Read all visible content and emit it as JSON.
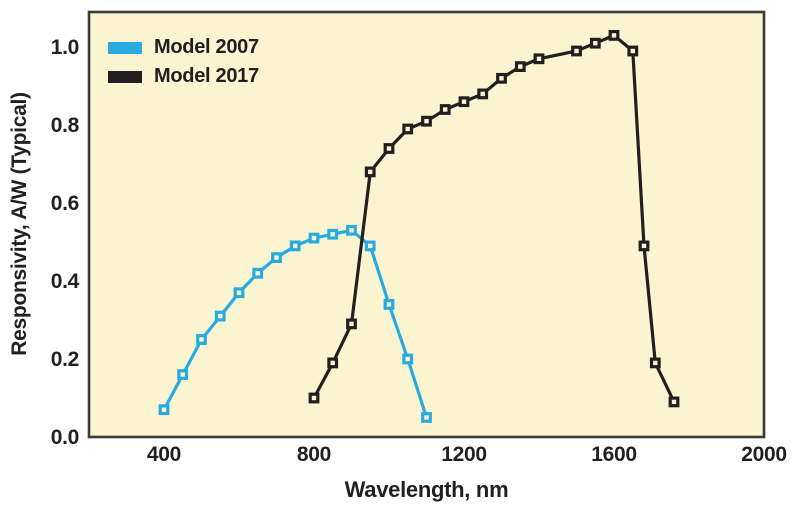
{
  "page": {
    "background": "#ffffff"
  },
  "chart_data": {
    "type": "line",
    "title": "",
    "xlabel": "Wavelength, nm",
    "ylabel": "Responsivity, A/W (Typical)",
    "xlim": [
      200,
      2000
    ],
    "ylim": [
      0,
      1.09
    ],
    "x_ticks": [
      "400",
      "800",
      "1200",
      "1600",
      "2000"
    ],
    "x_tick_values": [
      400,
      800,
      1200,
      1600,
      2000
    ],
    "y_ticks": [
      "0.0",
      "0.2",
      "0.4",
      "0.6",
      "0.8",
      "1.0"
    ],
    "y_tick_values": [
      0.0,
      0.2,
      0.4,
      0.6,
      0.8,
      1.0
    ],
    "grid": false,
    "legend_position": "top-left",
    "plot_background": "#FAF5D0",
    "border_color": "#3A3A39",
    "text_color": "#231F20",
    "marker": "open-square",
    "series": [
      {
        "name": "Model 2007",
        "color": "#29ABE2",
        "points": [
          [
            400,
            0.07
          ],
          [
            450,
            0.16
          ],
          [
            500,
            0.25
          ],
          [
            550,
            0.31
          ],
          [
            600,
            0.37
          ],
          [
            650,
            0.42
          ],
          [
            700,
            0.46
          ],
          [
            750,
            0.49
          ],
          [
            800,
            0.51
          ],
          [
            850,
            0.52
          ],
          [
            900,
            0.53
          ],
          [
            950,
            0.49
          ],
          [
            1000,
            0.34
          ],
          [
            1050,
            0.2
          ],
          [
            1100,
            0.05
          ]
        ]
      },
      {
        "name": "Model 2017",
        "color": "#231F20",
        "points": [
          [
            800,
            0.1
          ],
          [
            850,
            0.19
          ],
          [
            900,
            0.29
          ],
          [
            950,
            0.68
          ],
          [
            1000,
            0.74
          ],
          [
            1050,
            0.79
          ],
          [
            1100,
            0.81
          ],
          [
            1150,
            0.84
          ],
          [
            1200,
            0.86
          ],
          [
            1250,
            0.88
          ],
          [
            1300,
            0.92
          ],
          [
            1350,
            0.95
          ],
          [
            1400,
            0.97
          ],
          [
            1500,
            0.99
          ],
          [
            1550,
            1.01
          ],
          [
            1600,
            1.03
          ],
          [
            1650,
            0.99
          ],
          [
            1680,
            0.49
          ],
          [
            1710,
            0.19
          ],
          [
            1760,
            0.09
          ]
        ]
      }
    ]
  }
}
